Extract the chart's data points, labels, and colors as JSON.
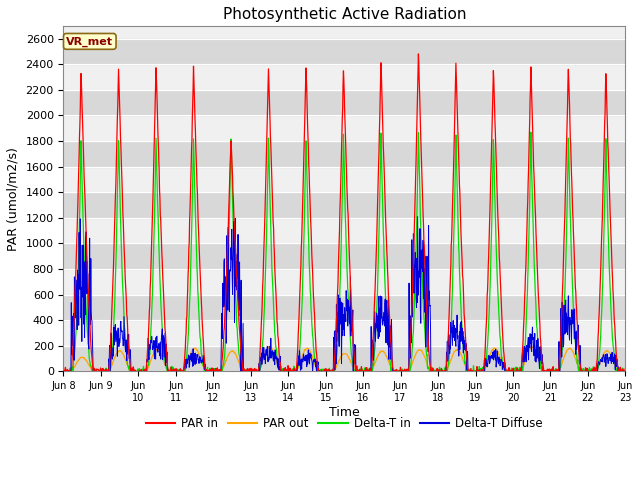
{
  "title": "Photosynthetic Active Radiation",
  "ylabel": "PAR (umol/m2/s)",
  "xlabel": "Time",
  "ylim": [
    0,
    2700
  ],
  "yticks": [
    0,
    200,
    400,
    600,
    800,
    1000,
    1200,
    1400,
    1600,
    1800,
    2000,
    2200,
    2400,
    2600
  ],
  "label_text": "VR_met",
  "legend_labels": [
    "PAR in",
    "PAR out",
    "Delta-T in",
    "Delta-T Diffuse"
  ],
  "colors": {
    "par_in": "#ff0000",
    "par_out": "#ffa500",
    "delta_t_in": "#00dd00",
    "delta_t_diff": "#0000dd"
  },
  "fig_bg": "#ffffff",
  "plot_bg": "#f0f0f0",
  "band_light": "#e8e8e8",
  "band_dark": "#d8d8d8",
  "grid_color": "#ffffff",
  "title_fontsize": 11,
  "axis_fontsize": 9,
  "tick_fontsize": 8,
  "par_in_peaks": [
    2350,
    2370,
    2380,
    2390,
    1840,
    2390,
    2390,
    2370,
    2430,
    2500,
    2410,
    2380,
    2380,
    2380,
    2330
  ],
  "par_out_peaks": [
    110,
    160,
    170,
    180,
    160,
    190,
    180,
    140,
    160,
    170,
    170,
    180,
    190,
    180,
    160
  ],
  "delta_t_in_peaks": [
    1830,
    1840,
    1850,
    1850,
    1850,
    1850,
    1850,
    1870,
    1870,
    1870,
    1860,
    1850,
    1850,
    1840,
    1830
  ],
  "delta_t_diff_peaks": [
    750,
    270,
    240,
    110,
    860,
    140,
    110,
    500,
    450,
    870,
    280,
    110,
    210,
    400,
    110
  ],
  "n_days": 15,
  "start_day": 8
}
